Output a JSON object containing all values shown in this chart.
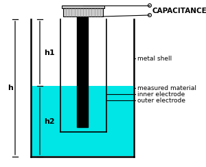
{
  "bg_color": "#ffffff",
  "cyan_color": "#00e5e5",
  "black_color": "#000000",
  "gray_color": "#888888",
  "light_gray": "#cccccc",
  "title": "CAPACITANCE",
  "labels": {
    "metal_shell": "metal shell",
    "measured_material": "measured material",
    "inner_electrode": "inner electrode",
    "outer_electrode": "outer electrode",
    "h": "h",
    "h1": "h1",
    "h2": "h2"
  },
  "figsize": [
    3.0,
    2.43
  ],
  "dpi": 100
}
